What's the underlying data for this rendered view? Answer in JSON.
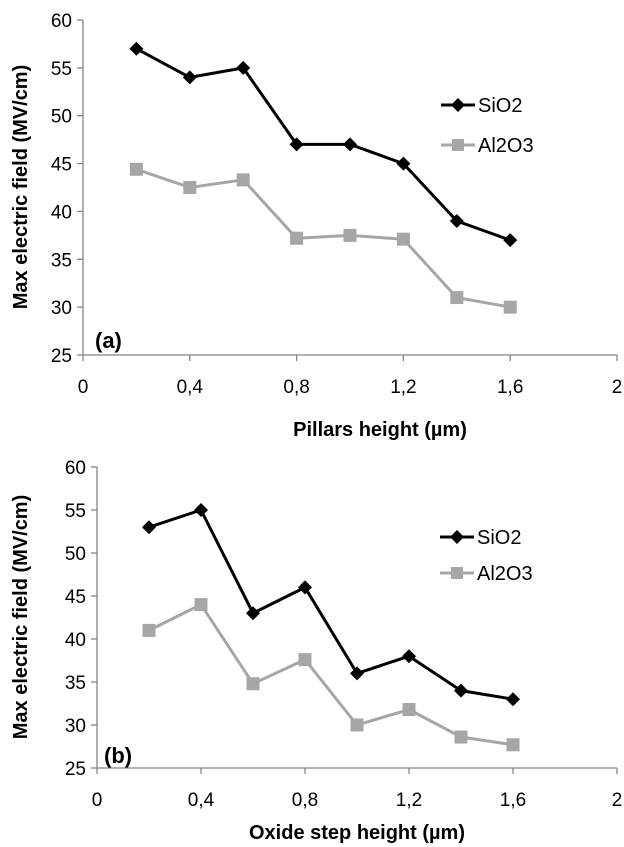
{
  "chart_data": [
    {
      "type": "line",
      "panel_label": "(a)",
      "xlabel": "Pillars height (µm)",
      "ylabel": "Max electric field (MV/cm)",
      "xlim": [
        0,
        2
      ],
      "ylim": [
        25,
        60
      ],
      "x_ticks": [
        "0",
        "0,4",
        "0,8",
        "1,2",
        "1,6",
        "2"
      ],
      "y_ticks": [
        "25",
        "30",
        "35",
        "40",
        "45",
        "50",
        "55",
        "60"
      ],
      "grid": false,
      "legend_position": "right",
      "x": [
        0.2,
        0.4,
        0.6,
        0.8,
        1.0,
        1.2,
        1.4,
        1.6
      ],
      "series": [
        {
          "name": "SiO2",
          "color": "#000000",
          "marker": "diamond",
          "values": [
            57,
            54,
            55,
            47,
            47,
            45,
            39,
            37
          ]
        },
        {
          "name": "Al2O3",
          "color": "#a6a6a6",
          "marker": "square",
          "values": [
            44.4,
            42.5,
            43.3,
            37.2,
            37.5,
            37.1,
            31.0,
            30.0
          ]
        }
      ]
    },
    {
      "type": "line",
      "panel_label": "(b)",
      "xlabel": "Oxide step height (µm)",
      "ylabel": "Max electric field (MV/cm)",
      "xlim": [
        0,
        2
      ],
      "ylim": [
        25,
        60
      ],
      "x_ticks": [
        "0",
        "0,4",
        "0,8",
        "1,2",
        "1,6",
        "2"
      ],
      "y_ticks": [
        "25",
        "30",
        "35",
        "40",
        "45",
        "50",
        "55",
        "60"
      ],
      "grid": false,
      "legend_position": "right",
      "x": [
        0.2,
        0.4,
        0.6,
        0.8,
        1.0,
        1.2,
        1.4,
        1.6
      ],
      "series": [
        {
          "name": "SiO2",
          "color": "#000000",
          "marker": "diamond",
          "values": [
            53,
            55,
            43,
            46,
            36,
            38,
            34,
            33
          ]
        },
        {
          "name": "Al2O3",
          "color": "#a6a6a6",
          "marker": "square",
          "values": [
            41,
            44,
            34.8,
            37.6,
            30.0,
            31.8,
            28.6,
            27.7
          ]
        }
      ]
    }
  ]
}
